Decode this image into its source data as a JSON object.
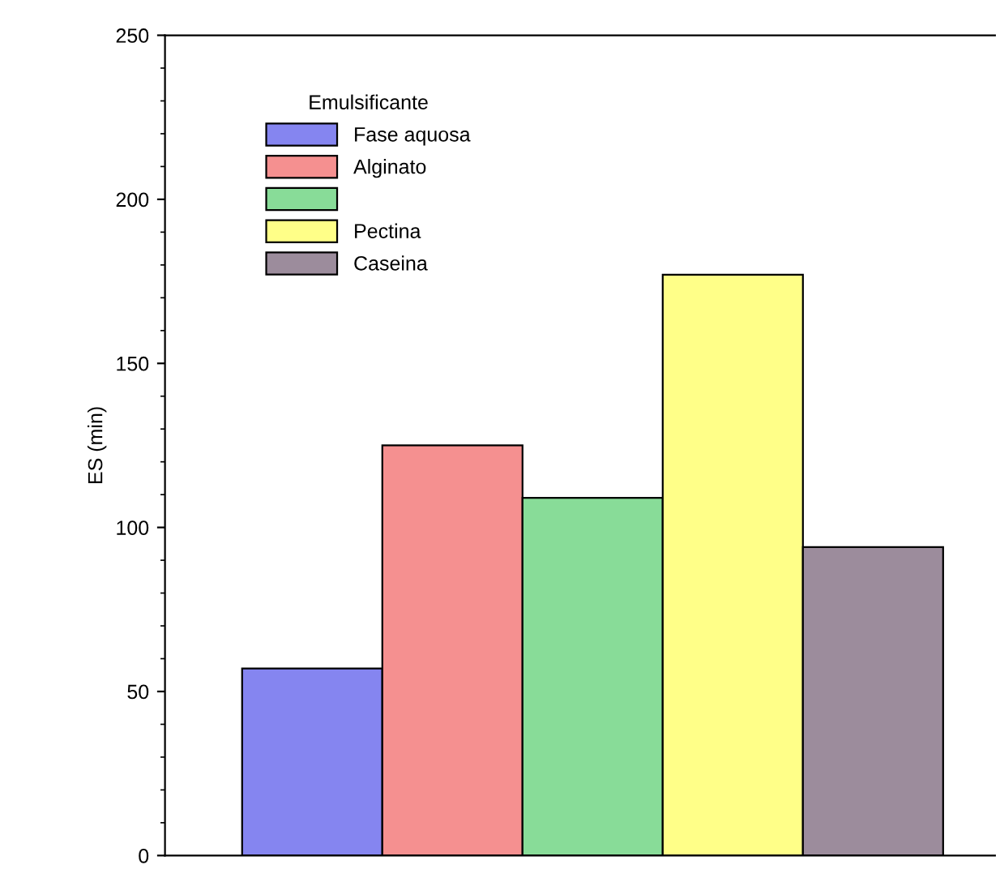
{
  "chart_data": {
    "type": "bar",
    "ylabel": "ES (min)",
    "legend_title": "Emulsificante",
    "categories": [
      null
    ],
    "ylim": [
      0,
      250
    ],
    "yticks": [
      0,
      50,
      100,
      150,
      200,
      250
    ],
    "grid": false,
    "legend": "top left",
    "series": [
      {
        "name": "Fase aquosa",
        "color": "#8585f0",
        "values": [
          57
        ]
      },
      {
        "name": "Alginato",
        "color": "#f59090",
        "values": [
          125
        ]
      },
      {
        "color": "#88dc98",
        "values": [
          109
        ]
      },
      {
        "name": "Pectina",
        "color": "#ffff88",
        "values": [
          177
        ]
      },
      {
        "name": "Caseina",
        "color": "#9c8c9c",
        "values": [
          94
        ]
      }
    ]
  }
}
